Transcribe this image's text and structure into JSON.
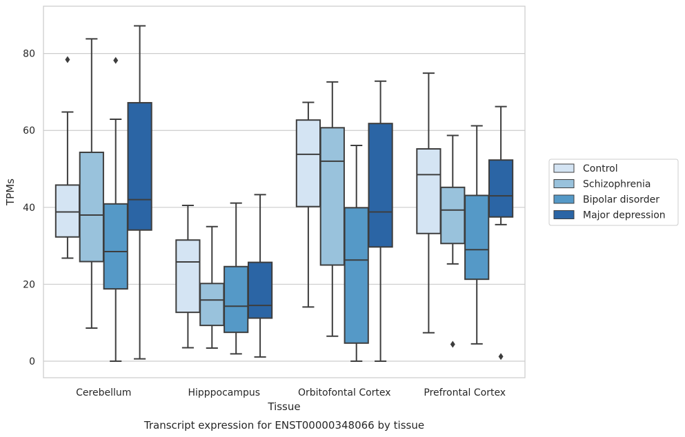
{
  "chart_data": {
    "type": "box",
    "xlabel": "Tissue",
    "ylabel": "TPMs",
    "caption": "Transcript expression for ENST00000348066 by tissue",
    "ylim": [
      -4.3,
      92.3
    ],
    "yticks": [
      0,
      20,
      40,
      60,
      80
    ],
    "grid": "horizontal",
    "legend_position": "right",
    "categories": [
      "Cerebellum",
      "Hipppocampus",
      "Orbitofontal Cortex",
      "Prefrontal Cortex"
    ],
    "colors": [
      "#d4e4f3",
      "#99c2dc",
      "#5599c7",
      "#2b65a5"
    ],
    "series": [
      {
        "name": "Control",
        "boxes": [
          {
            "whislo": 26.8,
            "q1": 32.3,
            "med": 38.8,
            "q3": 45.8,
            "whishi": 64.8,
            "fliers": [
              78.4
            ]
          },
          {
            "whislo": 3.5,
            "q1": 12.7,
            "med": 25.8,
            "q3": 31.5,
            "whishi": 40.5,
            "fliers": []
          },
          {
            "whislo": 14.1,
            "q1": 40.2,
            "med": 53.8,
            "q3": 62.7,
            "whishi": 67.3,
            "fliers": []
          },
          {
            "whislo": 7.4,
            "q1": 33.2,
            "med": 48.5,
            "q3": 55.2,
            "whishi": 74.9,
            "fliers": []
          }
        ]
      },
      {
        "name": "Schizophrenia",
        "boxes": [
          {
            "whislo": 8.6,
            "q1": 25.9,
            "med": 38.0,
            "q3": 54.3,
            "whishi": 83.8,
            "fliers": []
          },
          {
            "whislo": 3.4,
            "q1": 9.3,
            "med": 15.9,
            "q3": 20.2,
            "whishi": 35.0,
            "fliers": []
          },
          {
            "whislo": 6.5,
            "q1": 25.0,
            "med": 52.0,
            "q3": 60.7,
            "whishi": 72.6,
            "fliers": []
          },
          {
            "whislo": 25.3,
            "q1": 30.6,
            "med": 39.3,
            "q3": 45.2,
            "whishi": 58.7,
            "fliers": [
              4.4
            ]
          }
        ]
      },
      {
        "name": "Bipolar disorder",
        "boxes": [
          {
            "whislo": 0.0,
            "q1": 18.8,
            "med": 28.5,
            "q3": 40.9,
            "whishi": 62.9,
            "fliers": [
              78.2
            ]
          },
          {
            "whislo": 1.9,
            "q1": 7.5,
            "med": 14.3,
            "q3": 24.6,
            "whishi": 41.1,
            "fliers": []
          },
          {
            "whislo": 0.0,
            "q1": 4.7,
            "med": 26.3,
            "q3": 39.9,
            "whishi": 56.1,
            "fliers": []
          },
          {
            "whislo": 4.5,
            "q1": 21.3,
            "med": 29.0,
            "q3": 43.1,
            "whishi": 61.2,
            "fliers": []
          }
        ]
      },
      {
        "name": "Major depression",
        "boxes": [
          {
            "whislo": 0.6,
            "q1": 34.1,
            "med": 42.0,
            "q3": 67.2,
            "whishi": 87.2,
            "fliers": []
          },
          {
            "whislo": 1.1,
            "q1": 11.2,
            "med": 14.5,
            "q3": 25.7,
            "whishi": 43.3,
            "fliers": []
          },
          {
            "whislo": 0.0,
            "q1": 29.7,
            "med": 38.8,
            "q3": 61.8,
            "whishi": 72.8,
            "fliers": []
          },
          {
            "whislo": 35.5,
            "q1": 37.5,
            "med": 43.0,
            "q3": 52.3,
            "whishi": 66.2,
            "fliers": [
              1.2
            ]
          }
        ]
      }
    ]
  }
}
